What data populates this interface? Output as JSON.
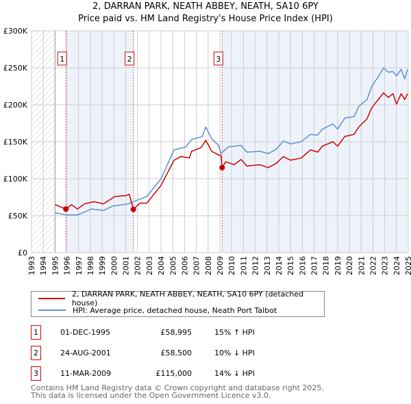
{
  "chart_data": {
    "type": "line",
    "title": "2, DARRAN PARK, NEATH ABBEY, NEATH, SA10 6PY",
    "subtitle": "Price paid vs. HM Land Registry's House Price Index (HPI)",
    "xlim": [
      1993,
      2025
    ],
    "ylim": [
      0,
      300000
    ],
    "x_ticks": [
      "1993",
      "1994",
      "1995",
      "1996",
      "1997",
      "1998",
      "1999",
      "2000",
      "2001",
      "2002",
      "2003",
      "2004",
      "2005",
      "2006",
      "2007",
      "2008",
      "2009",
      "2010",
      "2011",
      "2012",
      "2013",
      "2014",
      "2015",
      "2016",
      "2017",
      "2018",
      "2019",
      "2020",
      "2021",
      "2022",
      "2023",
      "2024",
      "2025"
    ],
    "y_ticks": [
      {
        "v": 0,
        "label": "£0"
      },
      {
        "v": 50000,
        "label": "£50K"
      },
      {
        "v": 100000,
        "label": "£100K"
      },
      {
        "v": 150000,
        "label": "£150K"
      },
      {
        "v": 200000,
        "label": "£200K"
      },
      {
        "v": 250000,
        "label": "£250K"
      },
      {
        "v": 300000,
        "label": "£300K"
      }
    ],
    "grid": true,
    "hatched_before": 1995,
    "series": [
      {
        "name": "2, DARRAN PARK, NEATH ABBEY, NEATH, SA10 6PY (detached house)",
        "color": "#cc0000",
        "x": [
          1995.0,
          1995.92,
          1996.4,
          1996.9,
          1997.5,
          1998.3,
          1999.1,
          2000.1,
          2001.0,
          2001.3,
          2001.65,
          2002.2,
          2002.8,
          2004.0,
          2005.1,
          2005.7,
          2006.4,
          2006.6,
          2007.4,
          2007.8,
          2008.3,
          2008.8,
          2009.1,
          2009.19,
          2009.5,
          2010.2,
          2010.8,
          2011.3,
          2012.4,
          2013.1,
          2013.8,
          2014.4,
          2015.0,
          2015.9,
          2016.7,
          2017.3,
          2017.7,
          2018.6,
          2019.0,
          2019.6,
          2020.4,
          2020.8,
          2021.5,
          2021.9,
          2022.5,
          2022.9,
          2023.3,
          2023.7,
          2024.0,
          2024.4,
          2024.7,
          2024.95
        ],
        "y": [
          65000,
          58995,
          65000,
          59000,
          66000,
          69000,
          66000,
          76000,
          77000,
          79000,
          58500,
          67000,
          67000,
          91000,
          125000,
          130000,
          128000,
          137000,
          142000,
          152000,
          137000,
          133000,
          131000,
          115000,
          123000,
          119000,
          126000,
          117000,
          119000,
          115000,
          121000,
          130000,
          125000,
          128000,
          139000,
          136000,
          144000,
          150000,
          144000,
          157000,
          160000,
          170000,
          181000,
          196000,
          208000,
          216000,
          210000,
          215000,
          201000,
          215000,
          207000,
          215000
        ]
      },
      {
        "name": "HPI: Average price, detached house, Neath Port Talbot",
        "color": "#5b8fd0",
        "x": [
          1995.0,
          1995.9,
          1996.9,
          1998.1,
          1999.1,
          1999.9,
          2001.2,
          2001.5,
          2002.8,
          2004.0,
          2005.1,
          2006.1,
          2006.6,
          2007.5,
          2007.8,
          2008.3,
          2008.9,
          2009.1,
          2009.7,
          2010.8,
          2011.3,
          2012.4,
          2013.1,
          2013.8,
          2014.4,
          2015.0,
          2015.9,
          2016.7,
          2017.3,
          2017.7,
          2018.6,
          2019.0,
          2019.6,
          2020.4,
          2020.8,
          2021.5,
          2021.9,
          2022.5,
          2022.9,
          2023.3,
          2023.7,
          2024.0,
          2024.4,
          2024.7,
          2024.95
        ],
        "y": [
          54000,
          51000,
          51000,
          59000,
          57000,
          63000,
          66000,
          68000,
          76000,
          100000,
          139000,
          143000,
          153000,
          157000,
          170000,
          154000,
          145000,
          134000,
          143000,
          145000,
          136000,
          137000,
          134000,
          140000,
          151000,
          147000,
          150000,
          160000,
          159000,
          167000,
          174000,
          167000,
          182000,
          184000,
          198000,
          207000,
          225000,
          239000,
          250000,
          244000,
          245000,
          239000,
          248000,
          235000,
          248000
        ]
      }
    ],
    "sales": [
      {
        "label": "1",
        "year": 1995.92,
        "date": "01-DEC-1995",
        "price": 58995,
        "price_text": "£58,995",
        "hpi_text": "15% ↑ HPI"
      },
      {
        "label": "2",
        "year": 2001.65,
        "date": "24-AUG-2001",
        "price": 58500,
        "price_text": "£58,500",
        "hpi_text": "10% ↓ HPI"
      },
      {
        "label": "3",
        "year": 2009.19,
        "date": "11-MAR-2009",
        "price": 115000,
        "price_text": "£115,000",
        "hpi_text": "14% ↓ HPI"
      }
    ],
    "legend": "below"
  },
  "footer": {
    "line1": "Contains HM Land Registry data © Crown copyright and database right 2025.",
    "line2": "This data is licensed under the Open Government Licence v3.0."
  }
}
